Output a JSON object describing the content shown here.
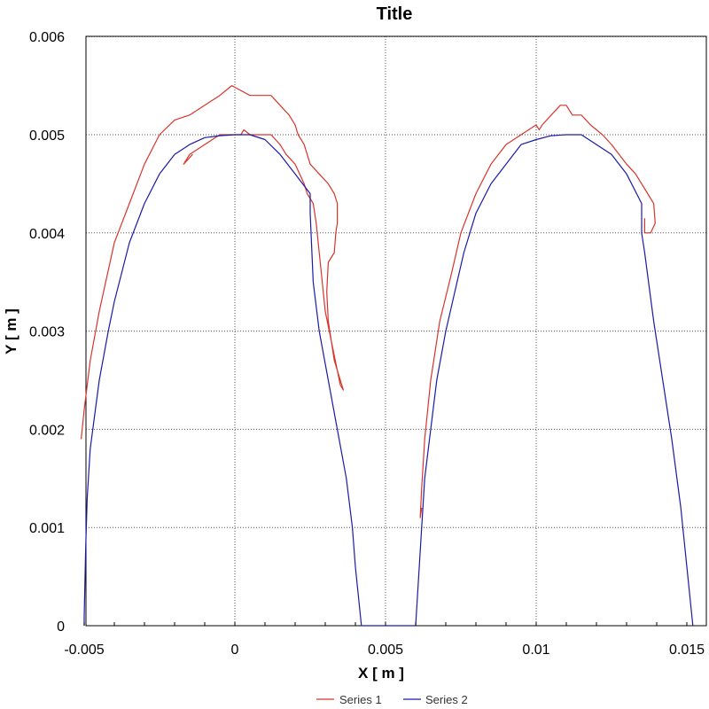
{
  "chart_data": {
    "type": "line",
    "title": "Title",
    "xlabel": "X [ m ]",
    "ylabel": "Y [ m ]",
    "xlim": [
      -0.005,
      0.015
    ],
    "ylim": [
      0,
      0.006
    ],
    "x_ticks": [
      -0.005,
      0,
      0.005,
      0.01,
      0.015
    ],
    "x_tick_labels": [
      "-0.005",
      "0",
      "0.005",
      "0.01",
      "0.015"
    ],
    "y_ticks": [
      0,
      0.001,
      0.002,
      0.003,
      0.004,
      0.005,
      0.006
    ],
    "y_tick_labels": [
      "0",
      "0.001",
      "0.002",
      "0.003",
      "0.004",
      "0.005",
      "0.006"
    ],
    "grid": true,
    "legend_position": "bottom",
    "series": [
      {
        "name": "Series 1",
        "color": "#d9342b",
        "points": [
          [
            -0.0051,
            0.0019
          ],
          [
            -0.005,
            0.0022
          ],
          [
            -0.0048,
            0.0027
          ],
          [
            -0.0045,
            0.0032
          ],
          [
            -0.004,
            0.0039
          ],
          [
            -0.0035,
            0.0043
          ],
          [
            -0.003,
            0.0047
          ],
          [
            -0.0025,
            0.005
          ],
          [
            -0.002,
            0.00515
          ],
          [
            -0.0015,
            0.0052
          ],
          [
            -0.001,
            0.0053
          ],
          [
            -0.0005,
            0.0054
          ],
          [
            -0.0003,
            0.00545
          ],
          [
            -0.0001,
            0.0055
          ],
          [
            0.0002,
            0.00545
          ],
          [
            0.0005,
            0.0054
          ],
          [
            0.0008,
            0.0054
          ],
          [
            0.0012,
            0.0054
          ],
          [
            0.0015,
            0.0053
          ],
          [
            0.0018,
            0.0052
          ],
          [
            0.002,
            0.0051
          ],
          [
            0.0021,
            0.005
          ],
          [
            0.0023,
            0.0049
          ],
          [
            0.0025,
            0.0047
          ],
          [
            0.0028,
            0.0046
          ],
          [
            0.0031,
            0.0045
          ],
          [
            0.0033,
            0.0044
          ],
          [
            0.0034,
            0.0043
          ],
          [
            0.0034,
            0.0041
          ],
          [
            0.00335,
            0.004
          ],
          [
            0.0033,
            0.0038
          ],
          [
            0.0031,
            0.0037
          ],
          [
            0.00305,
            0.0034
          ],
          [
            0.0031,
            0.0031
          ],
          [
            0.0033,
            0.0027
          ],
          [
            0.0035,
            0.0025
          ],
          [
            0.0036,
            0.0024
          ],
          [
            0.0035,
            0.00245
          ],
          [
            0.0034,
            0.0026
          ],
          [
            0.0032,
            0.0029
          ],
          [
            0.003,
            0.0032
          ],
          [
            0.0029,
            0.0035
          ],
          [
            0.0028,
            0.0038
          ],
          [
            0.0027,
            0.0041
          ],
          [
            0.0026,
            0.0043
          ],
          [
            0.0024,
            0.0044
          ],
          [
            0.0023,
            0.0045
          ],
          [
            0.002,
            0.0047
          ],
          [
            0.0017,
            0.0048
          ],
          [
            0.0015,
            0.0049
          ],
          [
            0.0012,
            0.005
          ],
          [
            0.0008,
            0.005
          ],
          [
            0.0005,
            0.005
          ],
          [
            0.0003,
            0.00505
          ],
          [
            0.0002,
            0.005
          ],
          [
            0.0,
            0.005
          ],
          [
            -0.0005,
            0.005
          ],
          [
            -0.001,
            0.0049
          ],
          [
            -0.0015,
            0.0048
          ],
          [
            -0.0017,
            0.0047
          ],
          [
            -0.0014,
            0.0048
          ],
          null,
          [
            0.0062,
            0.0012
          ],
          [
            0.00615,
            0.0011
          ],
          [
            0.0062,
            0.0014
          ],
          [
            0.0063,
            0.0019
          ],
          [
            0.0065,
            0.0025
          ],
          [
            0.0068,
            0.0031
          ],
          [
            0.0072,
            0.0036
          ],
          [
            0.0075,
            0.004
          ],
          [
            0.008,
            0.0044
          ],
          [
            0.0085,
            0.0047
          ],
          [
            0.009,
            0.0049
          ],
          [
            0.0095,
            0.005
          ],
          [
            0.01,
            0.0051
          ],
          [
            0.0101,
            0.00505
          ],
          [
            0.0102,
            0.0051
          ],
          [
            0.0105,
            0.0052
          ],
          [
            0.0108,
            0.0053
          ],
          [
            0.011,
            0.0053
          ],
          [
            0.0112,
            0.0052
          ],
          [
            0.0115,
            0.0052
          ],
          [
            0.0118,
            0.0051
          ],
          [
            0.0122,
            0.005
          ],
          [
            0.0125,
            0.0049
          ],
          [
            0.013,
            0.0047
          ],
          [
            0.0133,
            0.0046
          ],
          [
            0.0135,
            0.0045
          ],
          [
            0.0137,
            0.0044
          ],
          [
            0.0139,
            0.0043
          ],
          [
            0.01395,
            0.0041
          ],
          [
            0.0138,
            0.004
          ],
          [
            0.0136,
            0.004
          ],
          [
            0.0136,
            0.00415
          ]
        ]
      },
      {
        "name": "Series 2",
        "color": "#1a1aa6",
        "points": [
          [
            -0.005,
            0.0
          ],
          [
            -0.005,
            0.0001
          ],
          [
            -0.00495,
            0.0008
          ],
          [
            -0.0049,
            0.0013
          ],
          [
            -0.0048,
            0.0018
          ],
          [
            -0.0045,
            0.0025
          ],
          [
            -0.0042,
            0.003
          ],
          [
            -0.004,
            0.0033
          ],
          [
            -0.0035,
            0.0039
          ],
          [
            -0.003,
            0.0043
          ],
          [
            -0.0025,
            0.0046
          ],
          [
            -0.002,
            0.0048
          ],
          [
            -0.0015,
            0.0049
          ],
          [
            -0.001,
            0.00497
          ],
          [
            -0.0005,
            0.00499
          ],
          [
            0.0,
            0.005
          ],
          [
            0.0005,
            0.005
          ],
          [
            0.001,
            0.00495
          ],
          [
            0.0015,
            0.0048
          ],
          [
            0.002,
            0.0046
          ],
          [
            0.0025,
            0.0044
          ],
          [
            0.0025,
            0.0043
          ],
          [
            0.0025,
            0.0042
          ],
          [
            0.0026,
            0.0035
          ],
          [
            0.0028,
            0.003
          ],
          [
            0.0031,
            0.0025
          ],
          [
            0.0034,
            0.002
          ],
          [
            0.0037,
            0.0015
          ],
          [
            0.0039,
            0.001
          ],
          [
            0.004,
            0.0006
          ],
          [
            0.0041,
            0.0003
          ],
          [
            0.0042,
            0.0
          ],
          [
            0.006,
            0.0
          ],
          [
            0.0061,
            0.0005
          ],
          [
            0.0062,
            0.001
          ],
          [
            0.0063,
            0.0015
          ],
          [
            0.0065,
            0.002
          ],
          [
            0.0067,
            0.0025
          ],
          [
            0.007,
            0.003
          ],
          [
            0.0073,
            0.0034
          ],
          [
            0.0076,
            0.0038
          ],
          [
            0.008,
            0.0042
          ],
          [
            0.0085,
            0.0045
          ],
          [
            0.009,
            0.0047
          ],
          [
            0.0095,
            0.0049
          ],
          [
            0.01,
            0.00495
          ],
          [
            0.0105,
            0.00499
          ],
          [
            0.011,
            0.005
          ],
          [
            0.0115,
            0.005
          ],
          [
            0.012,
            0.0049
          ],
          [
            0.0125,
            0.0048
          ],
          [
            0.013,
            0.0046
          ],
          [
            0.0135,
            0.0043
          ],
          [
            0.0135,
            0.004
          ],
          [
            0.0136,
            0.0038
          ],
          [
            0.0139,
            0.0031
          ],
          [
            0.0142,
            0.0025
          ],
          [
            0.0145,
            0.0019
          ],
          [
            0.0148,
            0.0012
          ],
          [
            0.015,
            0.0006
          ],
          [
            0.0151,
            0.0003
          ],
          [
            0.0152,
            0.0
          ]
        ]
      }
    ]
  }
}
